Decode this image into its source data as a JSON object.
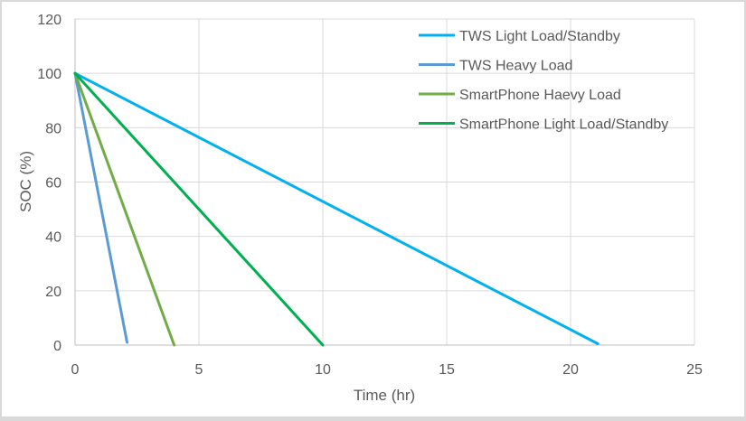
{
  "chart_data": {
    "type": "line",
    "title": "",
    "xlabel": "Time (hr)",
    "ylabel": "SOC (%)",
    "xlim": [
      0,
      25
    ],
    "ylim": [
      0,
      120
    ],
    "x_ticks": [
      "0",
      "5",
      "10",
      "15",
      "20",
      "25"
    ],
    "y_ticks": [
      "0",
      "20",
      "40",
      "60",
      "80",
      "100",
      "120"
    ],
    "grid": true,
    "legend_position": "top-right, inside",
    "series": [
      {
        "name": "TWS Light Load/Standby",
        "color": "#00b0f0",
        "x": [
          0,
          21.1
        ],
        "y": [
          100,
          0.5
        ]
      },
      {
        "name": "TWS Heavy Load",
        "color": "#5b9bd5",
        "x": [
          0,
          2.1
        ],
        "y": [
          100,
          1
        ]
      },
      {
        "name": "SmartPhone Haevy Load",
        "color": "#70ad47",
        "x": [
          0,
          4.0
        ],
        "y": [
          100,
          0
        ]
      },
      {
        "name": "SmartPhone Light Load/Standby",
        "color": "#00b050",
        "x": [
          0,
          10.0
        ],
        "y": [
          100,
          0
        ]
      }
    ]
  }
}
